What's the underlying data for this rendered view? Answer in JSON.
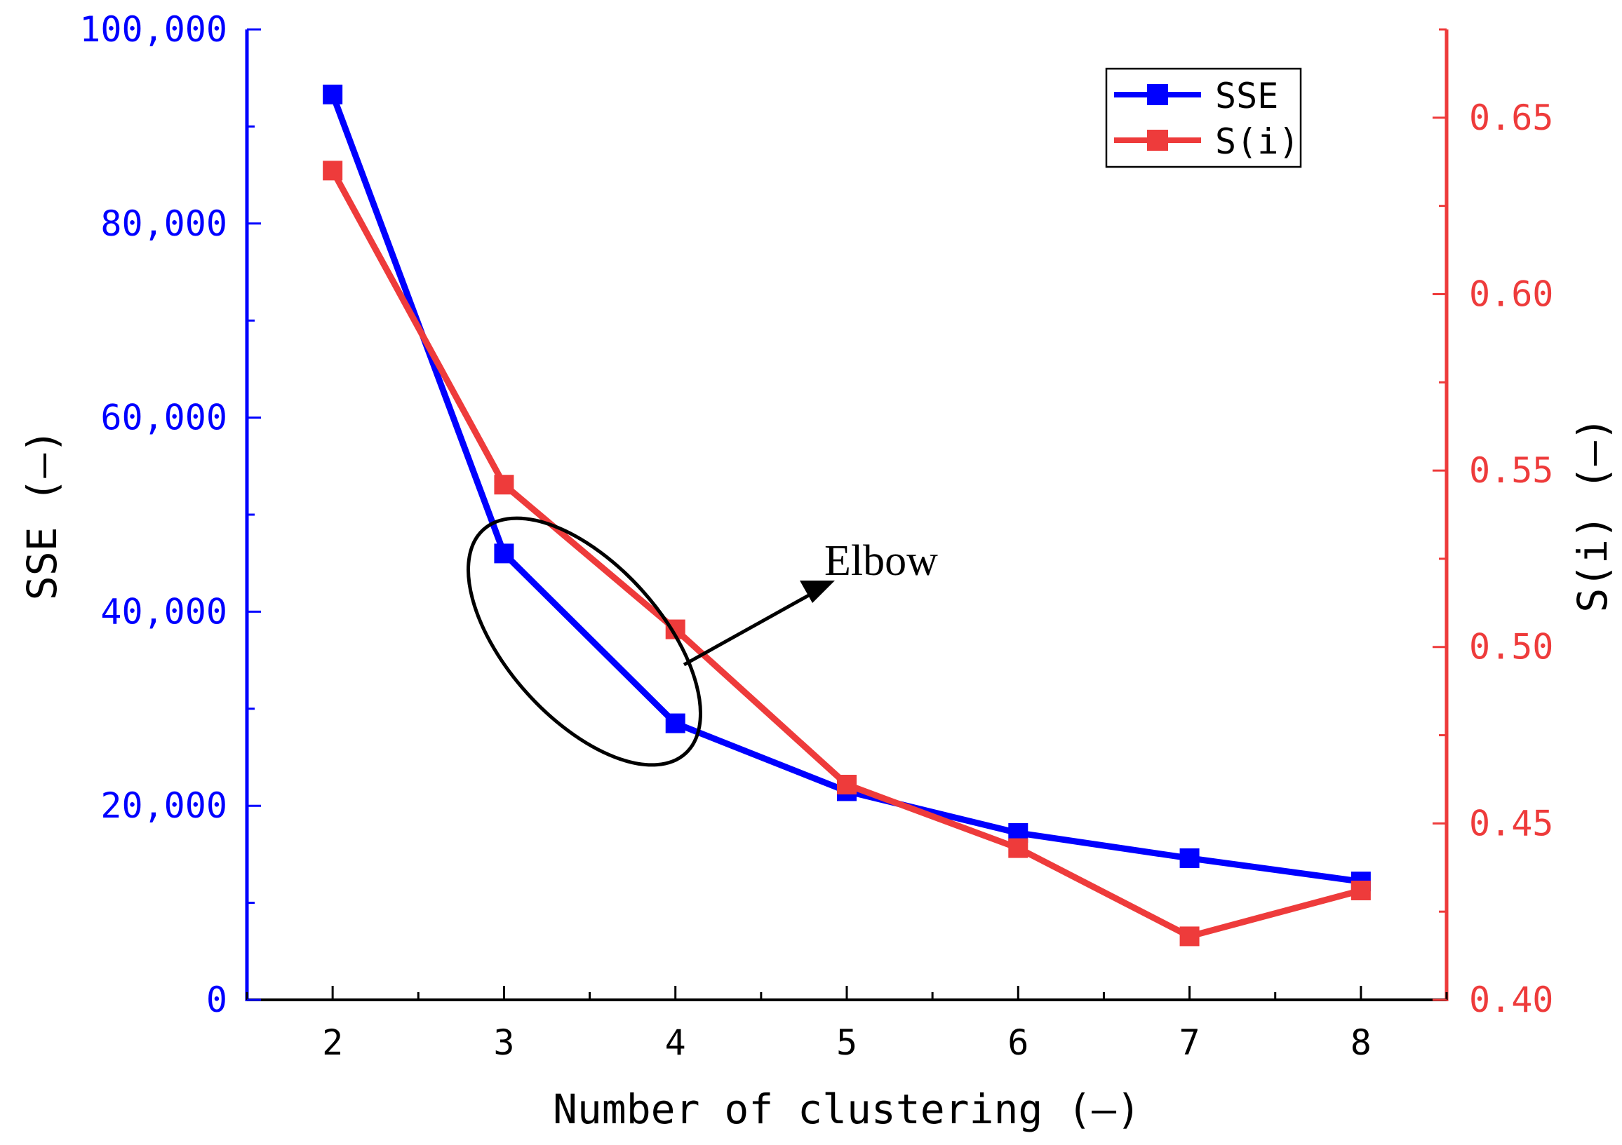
{
  "chart_data": {
    "type": "line",
    "title": "",
    "xlabel": "Number of clustering (–)",
    "ylabel": "SSE (–)",
    "y2label": "S(i) (–)",
    "categories": [
      2,
      3,
      4,
      5,
      6,
      7,
      8
    ],
    "x_tick_labels": [
      "2",
      "3",
      "4",
      "5",
      "6",
      "7",
      "8"
    ],
    "xlim": [
      1.5,
      8.5
    ],
    "ylim": [
      0,
      100000
    ],
    "y2lim": [
      0.4,
      0.675
    ],
    "y_ticks": [
      0,
      20000,
      40000,
      60000,
      80000,
      100000
    ],
    "y_tick_labels": [
      "0",
      "20,000",
      "40,000",
      "60,000",
      "80,000",
      "100,000"
    ],
    "y2_ticks": [
      0.4,
      0.45,
      0.5,
      0.55,
      0.6,
      0.65
    ],
    "y2_tick_labels": [
      "0.40",
      "0.45",
      "0.50",
      "0.55",
      "0.60",
      "0.65"
    ],
    "grid": false,
    "legend_position": "top-right",
    "series": [
      {
        "name": "SSE",
        "axis": "left",
        "color": "#0000ff",
        "values": [
          93300,
          46000,
          28500,
          21500,
          17200,
          14600,
          12200
        ]
      },
      {
        "name": "S(i)",
        "axis": "right",
        "color": "#ee3b3b",
        "values": [
          0.635,
          0.546,
          0.505,
          0.461,
          0.443,
          0.418,
          0.431
        ]
      }
    ],
    "annotations": [
      {
        "text": "Elbow",
        "target": "ellipse around clusters 3–4"
      }
    ]
  }
}
